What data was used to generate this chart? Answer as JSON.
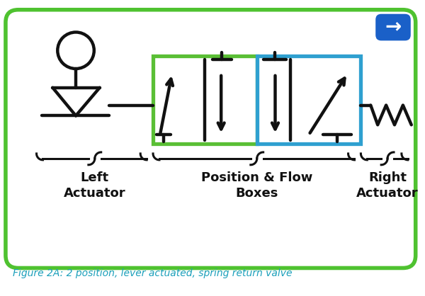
{
  "bg_color": "#ffffff",
  "border_color": "#4fc230",
  "border_linewidth": 4,
  "title_color": "#1a9fba",
  "title_text": "Figure 2A: 2 position, lever actuated, spring return valve",
  "title_fontsize": 10,
  "symbol_color": "#111111",
  "green_box_color": "#5abf35",
  "blue_box_color": "#2fa0d0",
  "nav_button_color": "#1a60c8",
  "label_color": "#111111",
  "label_left": "Left\nActuator",
  "label_center": "Position & Flow\nBoxes",
  "label_right": "Right\nActuator",
  "label_fontsize": 13
}
